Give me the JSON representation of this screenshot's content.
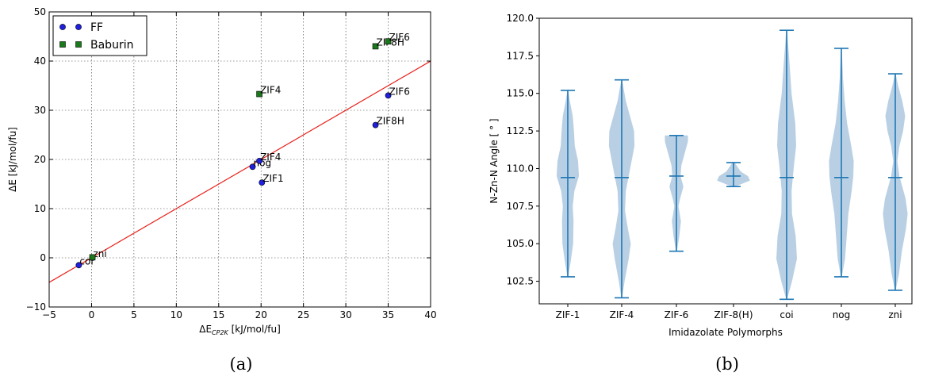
{
  "figure": {
    "caption_a": "(a)",
    "caption_b": "(b)"
  },
  "chart_data": [
    {
      "type": "scatter",
      "panel": "a",
      "xlabel_main": "ΔE",
      "xlabel_sub": "CP2K",
      "xlabel_unit": " [kJ/mol/fu]",
      "ylabel": "ΔE [kJ/mol/fu]",
      "xlim": [
        -5,
        40
      ],
      "ylim": [
        -10,
        50
      ],
      "xticks": [
        -5,
        0,
        5,
        10,
        15,
        20,
        25,
        30,
        35,
        40
      ],
      "yticks": [
        -10,
        0,
        10,
        20,
        30,
        40,
        50
      ],
      "xtick_labels": [
        "−5",
        "0",
        "5",
        "10",
        "15",
        "20",
        "25",
        "30",
        "35",
        "40"
      ],
      "ytick_labels": [
        "−10",
        "0",
        "10",
        "20",
        "30",
        "40",
        "50"
      ],
      "grid": true,
      "legend_position": "top-left",
      "fit_line": {
        "x": [
          -5,
          40
        ],
        "y": [
          -5,
          40
        ],
        "color": "#e8201a"
      },
      "series": [
        {
          "name": "FF",
          "marker": "circle",
          "color": "#1f1fe0",
          "points": [
            {
              "x": -1.5,
              "y": -1.5,
              "label": "coi"
            },
            {
              "x": 0.1,
              "y": 0.0,
              "label": "zni"
            },
            {
              "x": 19.0,
              "y": 18.5,
              "label": "nog"
            },
            {
              "x": 19.8,
              "y": 19.7,
              "label": "ZIF4"
            },
            {
              "x": 20.1,
              "y": 15.3,
              "label": "ZIF1"
            },
            {
              "x": 33.5,
              "y": 27.0,
              "label": "ZIF8H"
            },
            {
              "x": 35.0,
              "y": 33.0,
              "label": "ZIF6"
            }
          ]
        },
        {
          "name": "Baburin",
          "marker": "square",
          "color": "#1a7a1a",
          "points": [
            {
              "x": 0.1,
              "y": 0.1,
              "label": ""
            },
            {
              "x": 19.8,
              "y": 33.3,
              "label": "ZIF4"
            },
            {
              "x": 33.5,
              "y": 43.0,
              "label": "ZIF8H"
            },
            {
              "x": 35.0,
              "y": 44.0,
              "label": "ZIF6"
            }
          ]
        }
      ]
    },
    {
      "type": "violin",
      "panel": "b",
      "xlabel": "Imidazolate Polymorphs",
      "ylabel": "N-Zn-N Angle [ ° ]",
      "ylim": [
        101.0,
        120.0
      ],
      "yticks": [
        102.5,
        105.0,
        107.5,
        110.0,
        112.5,
        115.0,
        117.5,
        120.0
      ],
      "ytick_labels": [
        "102.5",
        "105.0",
        "107.5",
        "110.0",
        "112.5",
        "115.0",
        "117.5",
        "120.0"
      ],
      "color": "#1f77b4",
      "fill": "#b5cde3",
      "categories": [
        "ZIF-1",
        "ZIF-4",
        "ZIF-6",
        "ZIF-8(H)",
        "coi",
        "nog",
        "zni"
      ],
      "stats": [
        {
          "min": 102.8,
          "mean": 109.4,
          "max": 115.2
        },
        {
          "min": 101.4,
          "mean": 109.4,
          "max": 115.9
        },
        {
          "min": 104.5,
          "mean": 109.5,
          "max": 112.2
        },
        {
          "min": 108.8,
          "mean": 109.5,
          "max": 110.4
        },
        {
          "min": 101.3,
          "mean": 109.4,
          "max": 119.2
        },
        {
          "min": 102.8,
          "mean": 109.4,
          "max": 118.0
        },
        {
          "min": 101.9,
          "mean": 109.4,
          "max": 116.3
        }
      ],
      "profiles": [
        [
          [
            102.8,
            0.02
          ],
          [
            103.8,
            0.14
          ],
          [
            105.0,
            0.26
          ],
          [
            106.5,
            0.28
          ],
          [
            107.5,
            0.24
          ],
          [
            108.5,
            0.32
          ],
          [
            109.5,
            0.54
          ],
          [
            110.5,
            0.5
          ],
          [
            111.5,
            0.34
          ],
          [
            112.5,
            0.3
          ],
          [
            113.5,
            0.24
          ],
          [
            114.5,
            0.1
          ],
          [
            115.2,
            0.02
          ]
        ],
        [
          [
            101.4,
            0.02
          ],
          [
            102.5,
            0.14
          ],
          [
            104.0,
            0.34
          ],
          [
            105.0,
            0.44
          ],
          [
            106.0,
            0.3
          ],
          [
            107.2,
            0.16
          ],
          [
            108.5,
            0.2
          ],
          [
            109.5,
            0.34
          ],
          [
            110.5,
            0.48
          ],
          [
            111.5,
            0.62
          ],
          [
            112.5,
            0.6
          ],
          [
            113.5,
            0.4
          ],
          [
            114.5,
            0.2
          ],
          [
            115.9,
            0.02
          ]
        ],
        [
          [
            104.5,
            0.02
          ],
          [
            105.5,
            0.14
          ],
          [
            106.5,
            0.22
          ],
          [
            107.5,
            0.1
          ],
          [
            108.0,
            0.18
          ],
          [
            108.8,
            0.34
          ],
          [
            109.5,
            0.2
          ],
          [
            110.2,
            0.24
          ],
          [
            111.0,
            0.4
          ],
          [
            111.8,
            0.56
          ],
          [
            112.2,
            0.56
          ]
        ],
        [
          [
            108.8,
            0.08
          ],
          [
            109.2,
            0.8
          ],
          [
            109.5,
            0.7
          ],
          [
            109.8,
            0.35
          ],
          [
            110.2,
            0.15
          ],
          [
            110.4,
            0.05
          ]
        ],
        [
          [
            101.3,
            0.02
          ],
          [
            102.5,
            0.26
          ],
          [
            104.0,
            0.5
          ],
          [
            105.5,
            0.44
          ],
          [
            107.0,
            0.26
          ],
          [
            108.5,
            0.24
          ],
          [
            110.0,
            0.34
          ],
          [
            111.5,
            0.46
          ],
          [
            113.0,
            0.42
          ],
          [
            115.0,
            0.24
          ],
          [
            117.0,
            0.14
          ],
          [
            119.2,
            0.02
          ]
        ],
        [
          [
            102.8,
            0.02
          ],
          [
            104.0,
            0.18
          ],
          [
            105.5,
            0.26
          ],
          [
            107.0,
            0.34
          ],
          [
            108.5,
            0.5
          ],
          [
            109.5,
            0.58
          ],
          [
            110.5,
            0.6
          ],
          [
            111.5,
            0.48
          ],
          [
            113.0,
            0.28
          ],
          [
            114.5,
            0.16
          ],
          [
            116.0,
            0.08
          ],
          [
            118.0,
            0.02
          ]
        ],
        [
          [
            101.9,
            0.02
          ],
          [
            103.0,
            0.18
          ],
          [
            104.5,
            0.32
          ],
          [
            106.0,
            0.52
          ],
          [
            107.0,
            0.6
          ],
          [
            108.0,
            0.5
          ],
          [
            109.5,
            0.2
          ],
          [
            110.5,
            0.1
          ],
          [
            111.5,
            0.2
          ],
          [
            112.5,
            0.38
          ],
          [
            113.5,
            0.48
          ],
          [
            114.5,
            0.34
          ],
          [
            115.5,
            0.14
          ],
          [
            116.3,
            0.02
          ]
        ]
      ]
    }
  ]
}
